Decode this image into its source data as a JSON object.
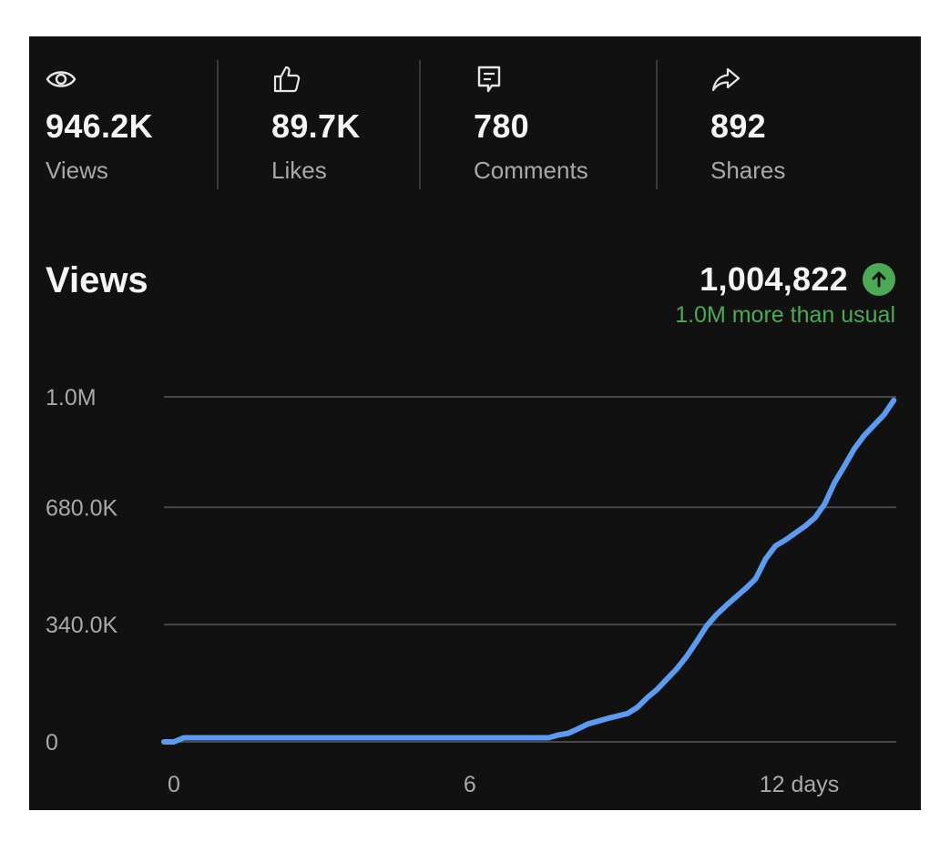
{
  "stats": [
    {
      "icon": "eye-icon",
      "value": "946.2K",
      "label": "Views"
    },
    {
      "icon": "thumbs-up-icon",
      "value": "89.7K",
      "label": "Likes"
    },
    {
      "icon": "comment-icon",
      "value": "780",
      "label": "Comments"
    },
    {
      "icon": "share-icon",
      "value": "892",
      "label": "Shares"
    }
  ],
  "views_section": {
    "title": "Views",
    "total": "1,004,822",
    "trend_icon": "arrow-up-icon",
    "trend_text": "1.0M more than usual",
    "trend_color": "#4caa55"
  },
  "colors": {
    "background": "#111112",
    "line": "#5b9cf0",
    "grid": "#48484a",
    "positive": "#4caa55"
  },
  "chart_data": {
    "type": "line",
    "ylim": [
      0,
      1000000
    ],
    "xlim": [
      0,
      14.85
    ],
    "ytick_values": [
      0,
      340000,
      680000,
      1000000
    ],
    "ytick_labels": [
      "0",
      "340.0K",
      "680.0K",
      "1.0M"
    ],
    "xtick_values": [
      0,
      6,
      12
    ],
    "xtick_labels": [
      "0",
      "6",
      "12 days"
    ],
    "grid": true,
    "series": [
      {
        "x": [
          0,
          0.2,
          0.4,
          1.0,
          2.0,
          3.0,
          4.0,
          5.0,
          6.0,
          7.0,
          7.8,
          8.0,
          8.2,
          8.4,
          8.6,
          8.8,
          9.0,
          9.2,
          9.4,
          9.6,
          9.8,
          10.0,
          10.2,
          10.4,
          10.6,
          10.8,
          11.0,
          11.2,
          11.4,
          11.6,
          11.8,
          12.0,
          12.2,
          12.4,
          12.6,
          12.8,
          13.0,
          13.2,
          13.4,
          13.6,
          13.8,
          14.0,
          14.2,
          14.4,
          14.6,
          14.8
        ],
        "y": [
          0,
          0,
          12000,
          12000,
          12000,
          12000,
          12000,
          12000,
          12000,
          12000,
          12000,
          20000,
          25000,
          38000,
          52000,
          60000,
          68000,
          75000,
          82000,
          100000,
          128000,
          152000,
          182000,
          212000,
          248000,
          290000,
          335000,
          368000,
          395000,
          420000,
          445000,
          473000,
          530000,
          568000,
          585000,
          605000,
          625000,
          650000,
          690000,
          752000,
          800000,
          850000,
          888000,
          918000,
          948000,
          990000
        ]
      }
    ]
  }
}
